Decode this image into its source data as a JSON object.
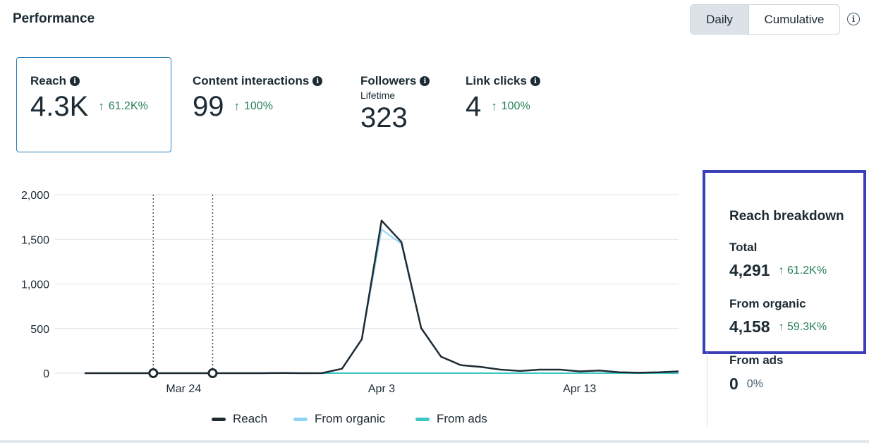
{
  "header": {
    "title": "Performance",
    "toggle": {
      "daily": "Daily",
      "cumulative": "Cumulative",
      "active": "Daily"
    },
    "info_icon": "i"
  },
  "metrics": [
    {
      "label": "Reach",
      "value": "4.3K",
      "change": "61.2K%",
      "selected": true
    },
    {
      "label": "Content interactions",
      "value": "99",
      "change": "100%"
    },
    {
      "label": "Followers",
      "sublabel": "Lifetime",
      "value": "323"
    },
    {
      "label": "Link clicks",
      "value": "4",
      "change": "100%"
    }
  ],
  "breakdown": {
    "title": "Reach breakdown",
    "total_label": "Total",
    "total_value": "4,291",
    "total_change": "61.2K%",
    "organic_label": "From organic",
    "organic_value": "4,158",
    "organic_change": "59.3K%",
    "ads_label": "From ads",
    "ads_value": "0",
    "ads_change": "0%"
  },
  "icons": {
    "up": "arrow-up-icon",
    "info": "info-icon"
  },
  "colors": {
    "accent": "#2a7fb8",
    "positive": "#268156",
    "highlight_box": "#3b3fb5"
  },
  "chart_data": {
    "type": "line",
    "x_tick_labels": [
      "Mar 24",
      "Apr 3",
      "Apr 13"
    ],
    "y_tick_labels": [
      "2,000",
      "1,500",
      "1,000",
      "500",
      "0"
    ],
    "ylim": [
      0,
      2000
    ],
    "grid": true,
    "legend_position": "bottom",
    "markers": [
      4,
      7
    ],
    "series": [
      {
        "name": "Reach",
        "color": "#1f2b33",
        "values": [
          0,
          0,
          0,
          0,
          0,
          0,
          0,
          0,
          0,
          0,
          2,
          0,
          1,
          50,
          380,
          1710,
          1470,
          505,
          185,
          90,
          70,
          40,
          25,
          40,
          40,
          20,
          30,
          10,
          5,
          10,
          20
        ]
      },
      {
        "name": "From organic",
        "color": "#8fd3f4",
        "values": [
          0,
          0,
          0,
          0,
          0,
          0,
          0,
          0,
          0,
          0,
          2,
          0,
          1,
          50,
          380,
          1610,
          1450,
          505,
          185,
          90,
          70,
          40,
          25,
          40,
          40,
          20,
          30,
          10,
          5,
          10,
          20
        ]
      },
      {
        "name": "From ads",
        "color": "#3cc6c6",
        "values": [
          0,
          0,
          0,
          0,
          0,
          0,
          0,
          0,
          0,
          0,
          0,
          0,
          0,
          0,
          0,
          0,
          0,
          0,
          0,
          0,
          0,
          0,
          0,
          0,
          0,
          0,
          0,
          0,
          0,
          0,
          0
        ]
      }
    ]
  }
}
